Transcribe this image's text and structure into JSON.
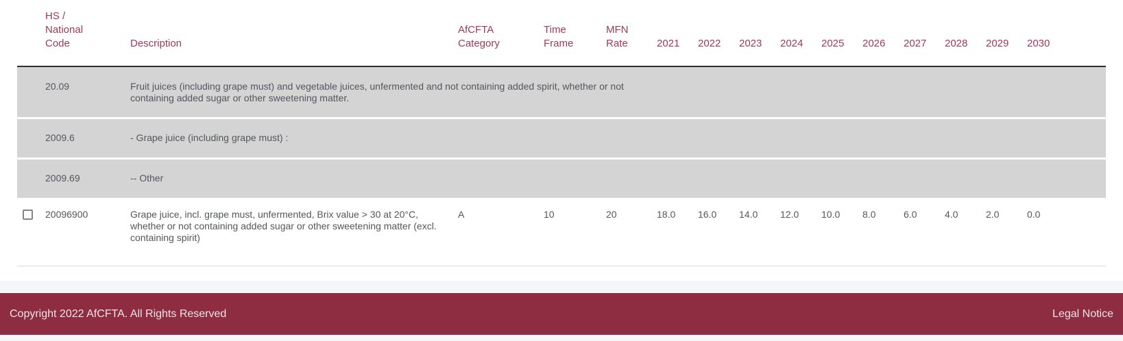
{
  "table": {
    "columns": {
      "code": "HS / National Code",
      "description": "Description",
      "category": "AfCFTA Category",
      "time_frame": "Time Frame",
      "mfn_rate": "MFN Rate"
    },
    "year_columns": [
      "2021",
      "2022",
      "2023",
      "2024",
      "2025",
      "2026",
      "2027",
      "2028",
      "2029",
      "2030"
    ],
    "group_rows": [
      {
        "code": "20.09",
        "description": "Fruit juices (including grape must) and vegetable juices, unfermented and not containing added spirit, whether or not containing added sugar or other sweetening matter."
      },
      {
        "code": "2009.6",
        "description": "- Grape juice (including grape must) :"
      },
      {
        "code": "2009.69",
        "description": "-- Other"
      }
    ],
    "product_rows": [
      {
        "code": "20096900",
        "description": "Grape juice, incl. grape must, unfermented, Brix value > 30 at 20°C, whether or not containing added sugar or other sweetening matter (excl. containing spirit)",
        "category": "A",
        "time_frame": "10",
        "mfn_rate": "20",
        "checked": false,
        "rates": [
          "18.0",
          "16.0",
          "14.0",
          "12.0",
          "10.0",
          "8.0",
          "6.0",
          "4.0",
          "2.0",
          "0.0"
        ]
      }
    ]
  },
  "footer": {
    "copyright": "Copyright 2022 AfCFTA. All Rights Reserved",
    "legal_notice": "Legal Notice"
  },
  "colors": {
    "accent_maroon_text": "#9e3a52",
    "footer_background": "#8e2c41",
    "group_row_background": "#d4d4d4",
    "header_border": "#2e2e30",
    "body_text": "#54565c",
    "page_band": "#f5f6f8"
  }
}
